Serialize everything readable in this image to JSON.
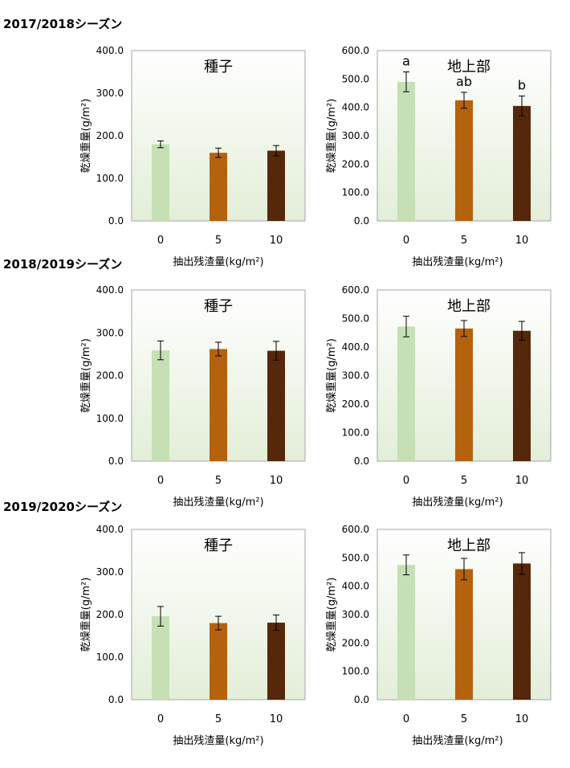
{
  "seasons": [
    {
      "title": "2017/2018シーズン"
    },
    {
      "title": "2018/2019シーズン"
    },
    {
      "title": "2019/2020シーズン"
    }
  ],
  "colors": {
    "0": "#c5e0b4",
    "5": "#b5620f",
    "10": "#55280b"
  },
  "chart_data": [
    {
      "type": "bar",
      "season": "2017/2018シーズン",
      "title": "種子",
      "categories": [
        "0",
        "5",
        "10"
      ],
      "values": [
        180,
        160,
        165
      ],
      "errors": [
        8,
        11,
        12
      ],
      "significance": [],
      "ylabel": "乾燥重量(g/m²)",
      "xlabel": "抽出残渣量(kg/m²)",
      "ylim": [
        0,
        400
      ],
      "yticks": [
        "0.0",
        "100.0",
        "200.0",
        "300.0",
        "400.0"
      ]
    },
    {
      "type": "bar",
      "season": "2017/2018シーズン",
      "title": "地上部",
      "categories": [
        "0",
        "5",
        "10"
      ],
      "values": [
        490,
        425,
        405
      ],
      "errors": [
        35,
        28,
        35
      ],
      "significance": [
        "a",
        "ab",
        "b"
      ],
      "ylabel": "乾燥重量(g/m²)",
      "xlabel": "抽出残渣量(kg/m²)",
      "ylim": [
        0,
        600
      ],
      "yticks": [
        "0.0",
        "100.0",
        "200.0",
        "300.0",
        "400.0",
        "500.0",
        "600.0"
      ]
    },
    {
      "type": "bar",
      "season": "2018/2019シーズン",
      "title": "種子",
      "categories": [
        "0",
        "5",
        "10"
      ],
      "values": [
        259,
        262,
        258
      ],
      "errors": [
        22,
        16,
        22
      ],
      "significance": [],
      "ylabel": "乾燥重量(g/m²)",
      "xlabel": "抽出残渣量(kg/m²)",
      "ylim": [
        0,
        400
      ],
      "yticks": [
        "0.0",
        "100.0",
        "200.0",
        "300.0",
        "400.0"
      ]
    },
    {
      "type": "bar",
      "season": "2018/2019シーズン",
      "title": "地上部",
      "categories": [
        "0",
        "5",
        "10"
      ],
      "values": [
        472,
        465,
        457
      ],
      "errors": [
        36,
        28,
        33
      ],
      "significance": [],
      "ylabel": "乾燥重量(g/m²)",
      "xlabel": "抽出残渣量(kg/m²)",
      "ylim": [
        0,
        600
      ],
      "yticks": [
        "0.0",
        "100.0",
        "200.0",
        "300.0",
        "400.0",
        "500.0",
        "600.0"
      ]
    },
    {
      "type": "bar",
      "season": "2019/2020シーズン",
      "title": "種子",
      "categories": [
        "0",
        "5",
        "10"
      ],
      "values": [
        196,
        180,
        181
      ],
      "errors": [
        23,
        16,
        18
      ],
      "significance": [],
      "ylabel": "乾燥重量(g/m²)",
      "xlabel": "抽出残渣量(kg/m²)",
      "ylim": [
        0,
        400
      ],
      "yticks": [
        "0.0",
        "100.0",
        "200.0",
        "300.0",
        "400.0"
      ]
    },
    {
      "type": "bar",
      "season": "2019/2020シーズン",
      "title": "地上部",
      "categories": [
        "0",
        "5",
        "10"
      ],
      "values": [
        475,
        460,
        480
      ],
      "errors": [
        35,
        38,
        38
      ],
      "significance": [],
      "ylabel": "乾燥重量(g/m²)",
      "xlabel": "抽出残渣量(kg/m²)",
      "ylim": [
        0,
        600
      ],
      "yticks": [
        "0.0",
        "100.0",
        "200.0",
        "300.0",
        "400.0",
        "500.0",
        "600.0"
      ]
    }
  ]
}
